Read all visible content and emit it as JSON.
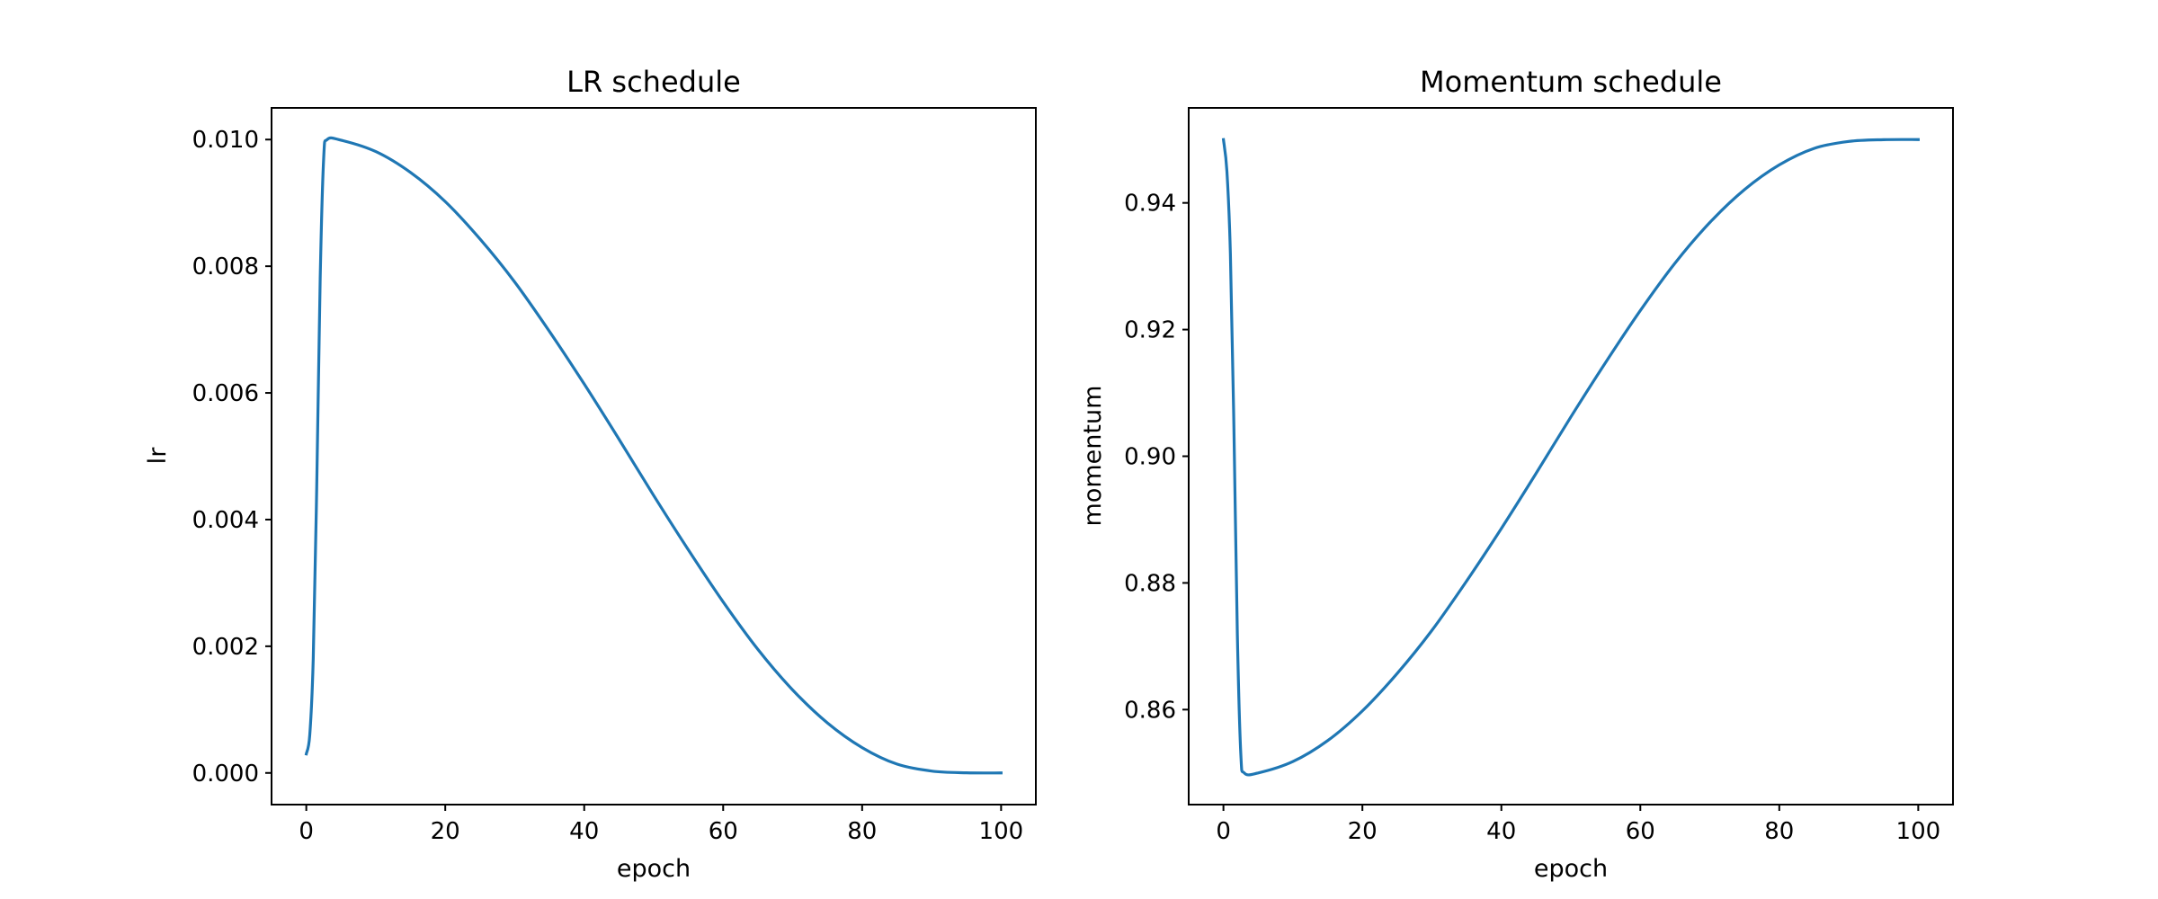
{
  "chart_data": [
    {
      "type": "line",
      "title": "LR schedule",
      "xlabel": "epoch",
      "ylabel": "lr",
      "xlim": [
        -5,
        105
      ],
      "ylim": [
        -0.0005,
        0.0105
      ],
      "xticks": [
        0,
        20,
        40,
        60,
        80,
        100
      ],
      "xtick_labels": [
        "0",
        "20",
        "40",
        "60",
        "80",
        "100"
      ],
      "yticks": [
        0.0,
        0.002,
        0.004,
        0.006,
        0.008,
        0.01
      ],
      "ytick_labels": [
        "0.000",
        "0.002",
        "0.004",
        "0.006",
        "0.008",
        "0.010"
      ],
      "grid": false,
      "series": [
        {
          "name": "lr",
          "color": "#1f77b4",
          "x": [
            0,
            0.5,
            1,
            1.5,
            2,
            2.5,
            3,
            5,
            10,
            15,
            20,
            25,
            30,
            35,
            40,
            45,
            50,
            55,
            60,
            65,
            70,
            75,
            80,
            85,
            90,
            95,
            100
          ],
          "values": [
            0.0003,
            0.0006,
            0.0018,
            0.0045,
            0.0078,
            0.0097,
            0.01,
            0.00999,
            0.00981,
            0.00948,
            0.00902,
            0.00843,
            0.00775,
            0.00697,
            0.00614,
            0.00527,
            0.00438,
            0.00352,
            0.0027,
            0.00195,
            0.00131,
            0.00079,
            0.0004,
            0.00014,
            3e-05,
            2e-06,
            0.0
          ]
        }
      ]
    },
    {
      "type": "line",
      "title": "Momentum schedule",
      "xlabel": "epoch",
      "ylabel": "momentum",
      "xlim": [
        -5,
        105
      ],
      "ylim": [
        0.845,
        0.955
      ],
      "xticks": [
        0,
        20,
        40,
        60,
        80,
        100
      ],
      "xtick_labels": [
        "0",
        "20",
        "40",
        "60",
        "80",
        "100"
      ],
      "yticks": [
        0.86,
        0.88,
        0.9,
        0.92,
        0.94
      ],
      "ytick_labels": [
        "0.86",
        "0.88",
        "0.90",
        "0.92",
        "0.94"
      ],
      "grid": false,
      "series": [
        {
          "name": "momentum",
          "color": "#1f77b4",
          "x": [
            0,
            0.5,
            1,
            1.5,
            2,
            2.5,
            3,
            5,
            10,
            15,
            20,
            25,
            30,
            35,
            40,
            45,
            50,
            55,
            60,
            65,
            70,
            75,
            80,
            85,
            90,
            95,
            100
          ],
          "values": [
            0.95,
            0.945,
            0.932,
            0.905,
            0.872,
            0.853,
            0.85,
            0.85,
            0.8518,
            0.8551,
            0.8598,
            0.8657,
            0.8725,
            0.8803,
            0.8886,
            0.8973,
            0.9062,
            0.9148,
            0.923,
            0.9305,
            0.9369,
            0.9421,
            0.946,
            0.9486,
            0.9497,
            0.94998,
            0.95
          ]
        }
      ]
    }
  ]
}
